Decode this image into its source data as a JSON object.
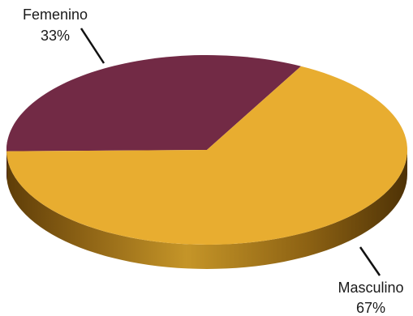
{
  "chart_data": {
    "type": "pie",
    "style": "3d",
    "categories": [
      "Femenino",
      "Masculino"
    ],
    "values": [
      33,
      67
    ],
    "value_labels": [
      "33%",
      "67%"
    ],
    "colors": {
      "Femenino": "#722a45",
      "Masculino": "#e8ad30",
      "Femenino_side": "#3e1322",
      "Masculino_side": "#8f6414"
    },
    "title": "",
    "legend": "none"
  }
}
